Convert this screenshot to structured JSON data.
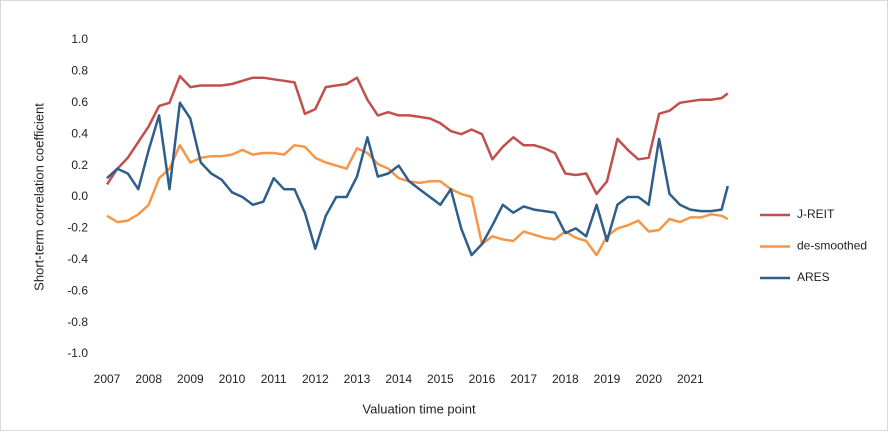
{
  "chart_data": {
    "type": "line",
    "x_label": "Valuation time point",
    "y_label": "Short-term correlation coefficient",
    "xlim": [
      2007,
      2022
    ],
    "xticks": [
      2007,
      2008,
      2009,
      2010,
      2011,
      2012,
      2013,
      2014,
      2015,
      2016,
      2017,
      2018,
      2019,
      2020,
      2021
    ],
    "ylim": [
      -1.0,
      1.0
    ],
    "yticks": [
      {
        "value": -1.0,
        "label": "-1.0"
      },
      {
        "value": -0.8,
        "label": "-0.8"
      },
      {
        "value": -0.6,
        "label": "-0.6"
      },
      {
        "value": -0.4,
        "label": "-0.4"
      },
      {
        "value": -0.2,
        "label": "-0.2"
      },
      {
        "value": 0,
        "label": "0.0"
      },
      {
        "value": 0.2,
        "label": "0.2"
      },
      {
        "value": 0.4,
        "label": "0.4"
      },
      {
        "value": 0.6,
        "label": "0.6"
      },
      {
        "value": 0.8,
        "label": "0.8"
      },
      {
        "value": 1.0,
        "label": "1.0"
      }
    ],
    "grid": false,
    "legend": "right",
    "x": [
      2007,
      2007.25,
      2007.5,
      2007.75,
      2008,
      2008.25,
      2008.5,
      2008.75,
      2009,
      2009.25,
      2009.5,
      2009.75,
      2010,
      2010.25,
      2010.5,
      2010.75,
      2011,
      2011.25,
      2011.5,
      2011.75,
      2012,
      2012.25,
      2012.5,
      2012.75,
      2013,
      2013.25,
      2013.5,
      2013.75,
      2014,
      2014.25,
      2014.5,
      2014.75,
      2015,
      2015.25,
      2015.5,
      2015.75,
      2016,
      2016.25,
      2016.5,
      2016.75,
      2017,
      2017.25,
      2017.5,
      2017.75,
      2018,
      2018.25,
      2018.5,
      2018.75,
      2019,
      2019.25,
      2019.5,
      2019.75,
      2020,
      2020.25,
      2020.5,
      2020.75,
      2021,
      2021.25,
      2021.5,
      2021.75,
      2021.9
    ],
    "series": [
      {
        "name": "J-REIT",
        "color": "#c0504d",
        "values": [
          0.08,
          0.18,
          0.25,
          0.35,
          0.45,
          0.58,
          0.6,
          0.77,
          0.7,
          0.71,
          0.71,
          0.71,
          0.72,
          0.74,
          0.76,
          0.76,
          0.75,
          0.74,
          0.73,
          0.53,
          0.56,
          0.7,
          0.71,
          0.72,
          0.76,
          0.62,
          0.52,
          0.54,
          0.52,
          0.52,
          0.51,
          0.5,
          0.47,
          0.42,
          0.4,
          0.43,
          0.4,
          0.24,
          0.32,
          0.38,
          0.33,
          0.33,
          0.31,
          0.28,
          0.15,
          0.14,
          0.15,
          0.02,
          0.1,
          0.37,
          0.3,
          0.24,
          0.25,
          0.53,
          0.55,
          0.6,
          0.61,
          0.62,
          0.62,
          0.63,
          0.66
        ]
      },
      {
        "name": "de-smoothed",
        "color": "#f79646",
        "values": [
          -0.12,
          -0.16,
          -0.15,
          -0.11,
          -0.05,
          0.12,
          0.18,
          0.33,
          0.22,
          0.25,
          0.26,
          0.26,
          0.27,
          0.3,
          0.27,
          0.28,
          0.28,
          0.27,
          0.33,
          0.32,
          0.25,
          0.22,
          0.2,
          0.18,
          0.31,
          0.28,
          0.21,
          0.18,
          0.12,
          0.1,
          0.09,
          0.1,
          0.1,
          0.05,
          0.02,
          0.0,
          -0.3,
          -0.25,
          -0.27,
          -0.28,
          -0.22,
          -0.24,
          -0.26,
          -0.27,
          -0.22,
          -0.26,
          -0.28,
          -0.37,
          -0.25,
          -0.2,
          -0.18,
          -0.15,
          -0.22,
          -0.21,
          -0.14,
          -0.16,
          -0.13,
          -0.13,
          -0.11,
          -0.12,
          -0.14
        ]
      },
      {
        "name": "ARES",
        "color": "#2e5f8c",
        "values": [
          0.12,
          0.18,
          0.15,
          0.05,
          0.3,
          0.52,
          0.05,
          0.6,
          0.5,
          0.22,
          0.15,
          0.11,
          0.03,
          0.0,
          -0.05,
          -0.03,
          0.12,
          0.05,
          0.05,
          -0.1,
          -0.33,
          -0.12,
          0.0,
          0.0,
          0.13,
          0.38,
          0.13,
          0.15,
          0.2,
          0.1,
          0.05,
          0.0,
          -0.05,
          0.05,
          -0.2,
          -0.37,
          -0.3,
          -0.18,
          -0.05,
          -0.1,
          -0.06,
          -0.08,
          -0.09,
          -0.1,
          -0.23,
          -0.2,
          -0.25,
          -0.05,
          -0.28,
          -0.05,
          0.0,
          0.0,
          -0.05,
          0.37,
          0.02,
          -0.05,
          -0.08,
          -0.09,
          -0.09,
          -0.08,
          0.07
        ]
      }
    ]
  }
}
